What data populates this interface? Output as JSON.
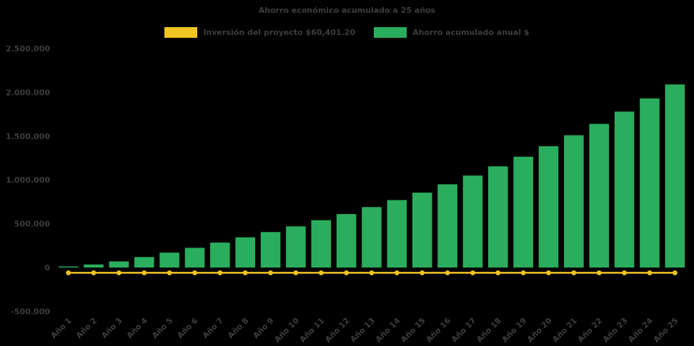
{
  "title": "Ahorro económico acumulado a 25 años",
  "colors": {
    "background": "#000000",
    "bar": "#2aad5d",
    "line": "#f0c421",
    "text": "#3d3d3d"
  },
  "legend": {
    "items": [
      {
        "label": "Inversión del proyecto $60,401.20",
        "color": "#f0c421",
        "series": "line"
      },
      {
        "label": "Ahorro acumulado anual $",
        "color": "#2aad5d",
        "series": "bar"
      }
    ]
  },
  "chart_data": {
    "type": "bar",
    "title": "Ahorro económico acumulado a 25 años",
    "categories": [
      "Año 1",
      "Año 2",
      "Año 3",
      "Año 4",
      "Año 5",
      "Año 6",
      "Año 7",
      "Año 8",
      "Año 9",
      "Año 10",
      "Año 11",
      "Año 12",
      "Año 13",
      "Año 14",
      "Año 15",
      "Año 16",
      "Año 17",
      "Año 18",
      "Año 19",
      "Año 20",
      "Año 21",
      "Año 22",
      "Año 23",
      "Año 24",
      "Año 25"
    ],
    "series": [
      {
        "name": "Ahorro acumulado anual $",
        "type": "bar",
        "color": "#2aad5d",
        "values": [
          12000,
          35000,
          70000,
          120000,
          170000,
          225000,
          285000,
          345000,
          405000,
          470000,
          540000,
          610000,
          690000,
          770000,
          855000,
          950000,
          1050000,
          1155000,
          1265000,
          1385000,
          1510000,
          1640000,
          1780000,
          1930000,
          2090000
        ]
      },
      {
        "name": "Inversión del proyecto $60,401.20",
        "type": "line",
        "color": "#f0c421",
        "values": [
          -60401.2,
          -60401.2,
          -60401.2,
          -60401.2,
          -60401.2,
          -60401.2,
          -60401.2,
          -60401.2,
          -60401.2,
          -60401.2,
          -60401.2,
          -60401.2,
          -60401.2,
          -60401.2,
          -60401.2,
          -60401.2,
          -60401.2,
          -60401.2,
          -60401.2,
          -60401.2,
          -60401.2,
          -60401.2,
          -60401.2,
          -60401.2,
          -60401.2
        ]
      }
    ],
    "ylim": [
      -500000,
      2500000
    ],
    "yticks": {
      "values": [
        2500000,
        2000000,
        1500000,
        1000000,
        500000,
        0,
        -500000
      ],
      "labels": [
        "2.500.000",
        "2.000.000",
        "1.500.000",
        "1.000.000",
        "500.000",
        "0",
        "-500.000"
      ]
    },
    "grid": false,
    "legend_position": "top",
    "xlabel": "",
    "ylabel": ""
  }
}
